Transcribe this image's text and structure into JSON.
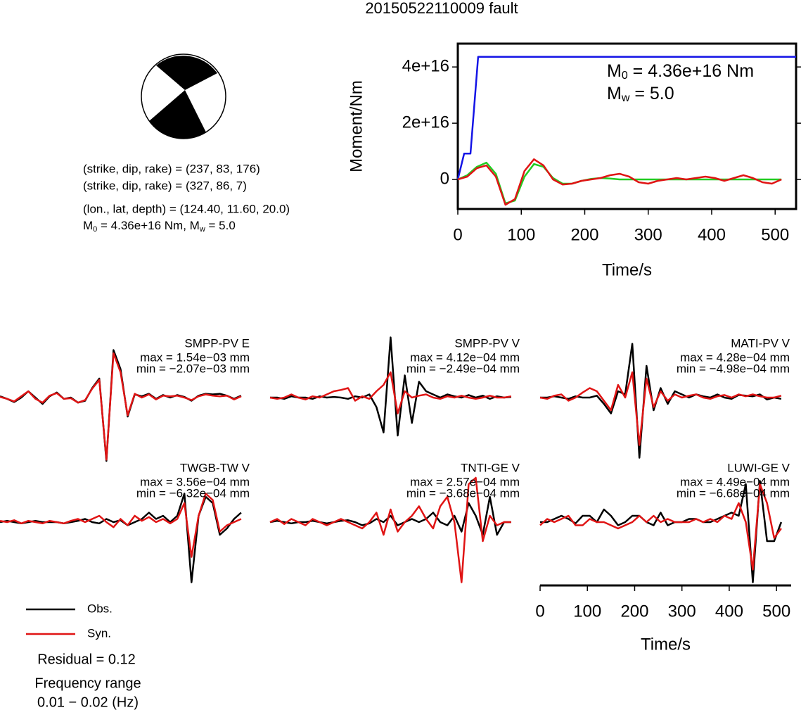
{
  "title": "20150522110009 fault",
  "focal_mechanism": {
    "lines": [
      "(strike, dip, rake) = (237, 83, 176)",
      "(strike, dip, rake) = (327, 86, 7)",
      "(lon., lat, depth) = (124.40, 11.60, 20.0)"
    ],
    "moment_line": [
      {
        "symbol": "M",
        "sub": "0",
        "text": " = 4.36e+16 Nm, "
      },
      {
        "symbol": "M",
        "sub": "w",
        "text": " = 5.0"
      }
    ]
  },
  "fit": {
    "residual": "Residual = 0.12",
    "frequency_label": "Frequency range",
    "frequency": "0.01 − 0.02 (Hz)"
  },
  "chart_data": [
    {
      "type": "line",
      "x_label": "Time/s",
      "y_label": "Moment/Nm",
      "frame": true,
      "xlim": [
        0,
        533
      ],
      "ylim": [
        -10500000000000000,
        48300000000000000
      ],
      "xticks": [
        0,
        100,
        200,
        300,
        400,
        500
      ],
      "yticks": [
        0,
        {
          "value": 20000000000000000,
          "label": "2e+16"
        },
        {
          "value": 40000000000000000,
          "label": "4e+16"
        }
      ],
      "annotations": [
        {
          "symbol": "M",
          "sub": "0",
          "text": " = 4.36e+16 Nm"
        },
        {
          "symbol": "M",
          "sub": "w",
          "text": " = 5.0"
        }
      ],
      "x": [
        0,
        15,
        30,
        45,
        60,
        75,
        90,
        105,
        120,
        135,
        150,
        165,
        180,
        195,
        210,
        225,
        240,
        255,
        270,
        285,
        300,
        315,
        330,
        345,
        360,
        375,
        390,
        405,
        420,
        435,
        450,
        465,
        480,
        495,
        510
      ],
      "series": [
        {
          "color": "#1414e6",
          "x": [
            0,
            10,
            20,
            32,
            533
          ],
          "values": [
            0,
            9200000000000000,
            9200000000000000,
            43600000000000000,
            43600000000000000
          ]
        },
        {
          "color": "#22cc22",
          "values": [
            0,
            1500000000000000.0,
            4500000000000000.0,
            6000000000000000.0,
            2000000000000000.0,
            -8500000000000000.0,
            -7500000000000000.0,
            1000000000000000.0,
            5500000000000000.0,
            4500000000000000.0,
            500000000000000.0,
            -1500000000000000.0,
            -1500000000000000.0,
            -500000000000000.0,
            200000000000000.0,
            500000000000000.0,
            300000000000000.0,
            0,
            0,
            0,
            0,
            0,
            0,
            0,
            0,
            0,
            0,
            0,
            0,
            0,
            0,
            0,
            0,
            0,
            0
          ]
        },
        {
          "color": "#e01414",
          "values": [
            0,
            1000000000000000.0,
            4000000000000000.0,
            5000000000000000.0,
            1000000000000000.0,
            -9000000000000000.0,
            -7000000000000000.0,
            3000000000000000.0,
            7200000000000000.0,
            5000000000000000.0,
            0,
            -1800000000000000.0,
            -1500000000000000.0,
            -500000000000000.0,
            0,
            500000000000000.0,
            1500000000000000.0,
            2000000000000000.0,
            1000000000000000.0,
            -1000000000000000.0,
            -1500000000000000.0,
            -500000000000000.0,
            0,
            500000000000000.0,
            0,
            500000000000000.0,
            1000000000000000.0,
            500000000000000.0,
            -500000000000000.0,
            500000000000000.0,
            1500000000000000.0,
            500000000000000.0,
            -1000000000000000.0,
            -1500000000000000.0,
            0
          ]
        }
      ]
    },
    {
      "type": "line",
      "title": "SMPP-PV E",
      "annotations": [
        "max = 1.54e−03 mm",
        "min = −2.07e−03 mm"
      ],
      "xlim": [
        0,
        531
      ],
      "ylim": [
        -1,
        1
      ],
      "x": [
        0,
        15,
        30,
        45,
        60,
        75,
        90,
        105,
        120,
        135,
        150,
        165,
        180,
        195,
        210,
        225,
        240,
        255,
        270,
        285,
        300,
        315,
        330,
        345,
        360,
        375,
        390,
        405,
        420,
        435,
        450,
        465,
        480,
        495,
        510
      ],
      "series": [
        {
          "name": "Obs.",
          "color": "#000000",
          "values": [
            0.02,
            -0.02,
            -0.07,
            0.0,
            0.1,
            0.0,
            -0.1,
            0.02,
            0.08,
            -0.02,
            0.0,
            -0.08,
            -0.05,
            0.15,
            0.3,
            -1.0,
            0.75,
            0.45,
            -0.3,
            0.05,
            0.02,
            0.06,
            -0.02,
            0.04,
            0.0,
            0.04,
            0.01,
            -0.05,
            0.03,
            0.06,
            0.05,
            0.06,
            0.03,
            -0.02,
            0.03
          ]
        },
        {
          "name": "Syn.",
          "color": "#e01414",
          "values": [
            0.01,
            -0.02,
            -0.06,
            0.02,
            0.1,
            -0.02,
            -0.08,
            0.03,
            0.07,
            -0.02,
            -0.01,
            -0.08,
            -0.04,
            0.14,
            0.28,
            -0.98,
            0.7,
            0.4,
            -0.28,
            0.06,
            0.0,
            0.05,
            -0.03,
            0.03,
            0.02,
            0.03,
            0.0,
            -0.04,
            0.02,
            0.05,
            0.03,
            0.02,
            0.03,
            -0.03,
            0.02
          ]
        }
      ]
    },
    {
      "type": "line",
      "title": "SMPP-PV V",
      "annotations": [
        "max = 4.12e−04 mm",
        "min = −2.49e−04 mm"
      ],
      "xlim": [
        0,
        531
      ],
      "ylim": [
        -1,
        1
      ],
      "x": [
        0,
        15,
        30,
        45,
        60,
        75,
        90,
        105,
        120,
        135,
        150,
        165,
        180,
        195,
        210,
        225,
        240,
        255,
        270,
        285,
        300,
        315,
        330,
        345,
        360,
        375,
        390,
        405,
        420,
        435,
        450,
        465,
        480,
        495,
        510
      ],
      "series": [
        {
          "color": "#000000",
          "values": [
            0.0,
            0.0,
            -0.02,
            0.02,
            0.0,
            0.0,
            -0.02,
            0.02,
            0.0,
            0.01,
            0.0,
            -0.02,
            0.02,
            0.0,
            0.05,
            -0.15,
            -0.55,
            0.95,
            -0.6,
            0.35,
            -0.4,
            0.25,
            0.1,
            0.05,
            0.0,
            0.05,
            0.02,
            0.0,
            0.04,
            0.0,
            0.03,
            -0.02,
            0.02,
            0.0,
            0.01
          ]
        },
        {
          "color": "#e01414",
          "values": [
            0.0,
            -0.02,
            0.0,
            0.05,
            0.0,
            -0.03,
            0.02,
            0.0,
            0.05,
            0.1,
            0.12,
            0.15,
            -0.05,
            0.02,
            -0.02,
            0.1,
            0.2,
            0.4,
            -0.25,
            0.1,
            0.0,
            0.03,
            0.05,
            0.0,
            -0.02,
            0.02,
            0.0,
            0.03,
            0.0,
            -0.02,
            0.0,
            0.03,
            0.0,
            0.0,
            0.02
          ]
        }
      ]
    },
    {
      "type": "line",
      "title": "MATI-PV V",
      "annotations": [
        "max = 4.28e−04 mm",
        "min = −4.98e−04 mm"
      ],
      "xlim": [
        0,
        531
      ],
      "ylim": [
        -1,
        1
      ],
      "x": [
        0,
        15,
        30,
        45,
        60,
        75,
        90,
        105,
        120,
        135,
        150,
        165,
        180,
        195,
        210,
        225,
        240,
        255,
        270,
        285,
        300,
        315,
        330,
        345,
        360,
        375,
        390,
        405,
        420,
        435,
        450,
        465,
        480,
        495,
        510
      ],
      "series": [
        {
          "color": "#000000",
          "values": [
            0.0,
            0.0,
            0.02,
            0.0,
            -0.02,
            0.02,
            0.0,
            0.0,
            0.03,
            -0.1,
            -0.25,
            0.1,
            0.05,
            0.85,
            -0.95,
            0.5,
            -0.2,
            0.15,
            -0.1,
            0.1,
            0.05,
            0.0,
            0.05,
            0.02,
            0.0,
            0.05,
            0.0,
            -0.02,
            0.04,
            0.03,
            0.02,
            0.05,
            -0.03,
            0.0,
            -0.02
          ]
        },
        {
          "color": "#e01414",
          "values": [
            0.0,
            -0.02,
            0.03,
            0.05,
            -0.05,
            0.0,
            0.08,
            0.15,
            0.1,
            -0.05,
            -0.2,
            0.2,
            0.0,
            0.4,
            -0.75,
            0.3,
            -0.15,
            0.1,
            -0.05,
            0.05,
            0.0,
            0.03,
            0.05,
            0.0,
            -0.02,
            0.02,
            0.04,
            0.0,
            0.05,
            0.02,
            0.05,
            0.02,
            0.0,
            0.0,
            0.03
          ]
        }
      ]
    },
    {
      "type": "line",
      "title": "TWGB-TW V",
      "annotations": [
        "max = 3.56e−04 mm",
        "min = −6.32e−04 mm"
      ],
      "xlim": [
        0,
        531
      ],
      "ylim": [
        -1,
        1
      ],
      "x": [
        0,
        15,
        30,
        45,
        60,
        75,
        90,
        105,
        120,
        135,
        150,
        165,
        180,
        195,
        210,
        225,
        240,
        255,
        270,
        285,
        300,
        315,
        330,
        345,
        360,
        375,
        390,
        405,
        420,
        435,
        450,
        465,
        480,
        495,
        510
      ],
      "series": [
        {
          "color": "#000000",
          "values": [
            0.0,
            0.02,
            0.0,
            -0.02,
            0.0,
            0.02,
            0.0,
            0.0,
            0.0,
            -0.02,
            0.0,
            0.02,
            0.05,
            0.0,
            -0.02,
            0.05,
            0.0,
            0.03,
            -0.05,
            0.0,
            0.05,
            0.15,
            0.05,
            0.1,
            0.0,
            0.1,
            0.45,
            -0.95,
            0.1,
            0.4,
            0.3,
            -0.2,
            -0.1,
            0.05,
            0.15
          ]
        },
        {
          "color": "#e01414",
          "values": [
            0.02,
            0.0,
            0.03,
            -0.02,
            0.02,
            0.0,
            -0.02,
            0.02,
            0.0,
            -0.02,
            0.02,
            0.05,
            0.0,
            0.05,
            0.1,
            0.0,
            -0.08,
            0.05,
            -0.05,
            0.1,
            0.02,
            0.08,
            0.0,
            0.05,
            -0.02,
            0.05,
            0.3,
            -0.55,
            0.1,
            0.45,
            0.35,
            -0.15,
            -0.05,
            0.0,
            0.05
          ]
        }
      ]
    },
    {
      "type": "line",
      "title": "TNTI-GE V",
      "annotations": [
        "max = 2.57e−04 mm",
        "min = −3.68e−04 mm"
      ],
      "xlim": [
        0,
        531
      ],
      "ylim": [
        -1,
        1
      ],
      "x": [
        0,
        15,
        30,
        45,
        60,
        75,
        90,
        105,
        120,
        135,
        150,
        165,
        180,
        195,
        210,
        225,
        240,
        255,
        270,
        285,
        300,
        315,
        330,
        345,
        360,
        375,
        390,
        405,
        420,
        435,
        450,
        465,
        480,
        495,
        510
      ],
      "series": [
        {
          "color": "#000000",
          "values": [
            0.0,
            0.02,
            0.0,
            -0.02,
            0.0,
            0.0,
            0.02,
            0.0,
            -0.02,
            0.0,
            0.02,
            0.03,
            0.0,
            -0.05,
            -0.02,
            0.05,
            0.0,
            0.1,
            -0.05,
            0.0,
            0.05,
            0.0,
            0.05,
            0.15,
            0.0,
            -0.05,
            0.1,
            -0.15,
            0.3,
            0.1,
            -0.2,
            0.4,
            -0.2,
            0.0,
            0.0
          ]
        },
        {
          "color": "#e01414",
          "values": [
            0.0,
            0.05,
            -0.03,
            0.05,
            0.0,
            -0.05,
            0.05,
            0.0,
            -0.05,
            0.0,
            0.05,
            0.0,
            -0.05,
            -0.1,
            0.0,
            0.15,
            -0.2,
            0.2,
            -0.15,
            0.0,
            0.1,
            0.25,
            0.05,
            -0.1,
            0.25,
            0.4,
            0.0,
            -0.95,
            0.6,
            0.7,
            -0.3,
            0.1,
            -0.05,
            0.0,
            0.0
          ]
        }
      ]
    },
    {
      "type": "line",
      "title": "LUWI-GE V",
      "annotations": [
        "max = 4.49e−04 mm",
        "min = −6.68e−04 mm"
      ],
      "x_label": "Time/s",
      "xlim": [
        0,
        531
      ],
      "ylim": [
        -1,
        1
      ],
      "xticks": [
        0,
        100,
        200,
        300,
        400,
        500
      ],
      "x": [
        0,
        15,
        30,
        45,
        60,
        75,
        90,
        105,
        120,
        135,
        150,
        165,
        180,
        195,
        210,
        225,
        240,
        255,
        270,
        285,
        300,
        315,
        330,
        345,
        360,
        375,
        390,
        405,
        420,
        435,
        450,
        465,
        480,
        495,
        510
      ],
      "series": [
        {
          "color": "#000000",
          "values": [
            0.0,
            0.0,
            0.05,
            0.1,
            0.05,
            -0.02,
            0.1,
            0.1,
            0.0,
            0.2,
            0.1,
            -0.05,
            0.0,
            0.1,
            0.1,
            0.0,
            -0.05,
            0.15,
            -0.05,
            0.0,
            0.0,
            0.05,
            0.05,
            0.0,
            0.0,
            0.05,
            0.1,
            0.15,
            0.1,
            0.6,
            -0.95,
            0.65,
            -0.3,
            -0.3,
            0.0
          ]
        },
        {
          "color": "#e01414",
          "values": [
            -0.05,
            0.05,
            0.0,
            0.05,
            0.1,
            -0.05,
            -0.05,
            0.05,
            0.0,
            0.0,
            -0.05,
            -0.1,
            -0.05,
            0.0,
            0.1,
            0.0,
            0.1,
            0.0,
            0.05,
            0.0,
            0.0,
            0.0,
            0.05,
            0.0,
            0.05,
            0.0,
            0.1,
            0.05,
            0.3,
            0.0,
            -0.75,
            0.6,
            0.3,
            -0.25,
            -0.1
          ]
        }
      ]
    }
  ]
}
